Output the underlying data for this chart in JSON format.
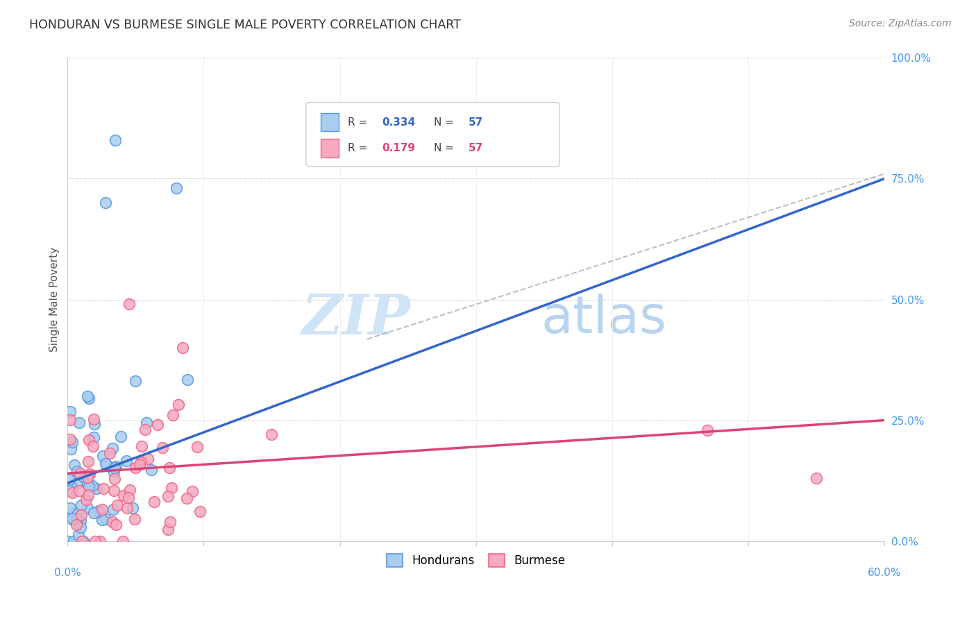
{
  "title": "HONDURAN VS BURMESE SINGLE MALE POVERTY CORRELATION CHART",
  "source": "Source: ZipAtlas.com",
  "ylabel": "Single Male Poverty",
  "honduran_R": 0.334,
  "honduran_N": 57,
  "burmese_R": 0.179,
  "burmese_N": 57,
  "honduran_color": "#aaccf0",
  "burmese_color": "#f5aabf",
  "honduran_edge_color": "#5599dd",
  "burmese_edge_color": "#ee6688",
  "honduran_trend_color": "#3366cc",
  "burmese_trend_color": "#dd4477",
  "dash_color": "#aaaaaa",
  "watermark_zip_color": "#d0e4f7",
  "watermark_atlas_color": "#b8d4ee",
  "background_color": "#ffffff",
  "grid_color": "#cccccc",
  "ytick_color": "#4499ee",
  "xtick_color": "#4499ee",
  "title_color": "#333333",
  "source_color": "#888888",
  "ylabel_color": "#555555"
}
